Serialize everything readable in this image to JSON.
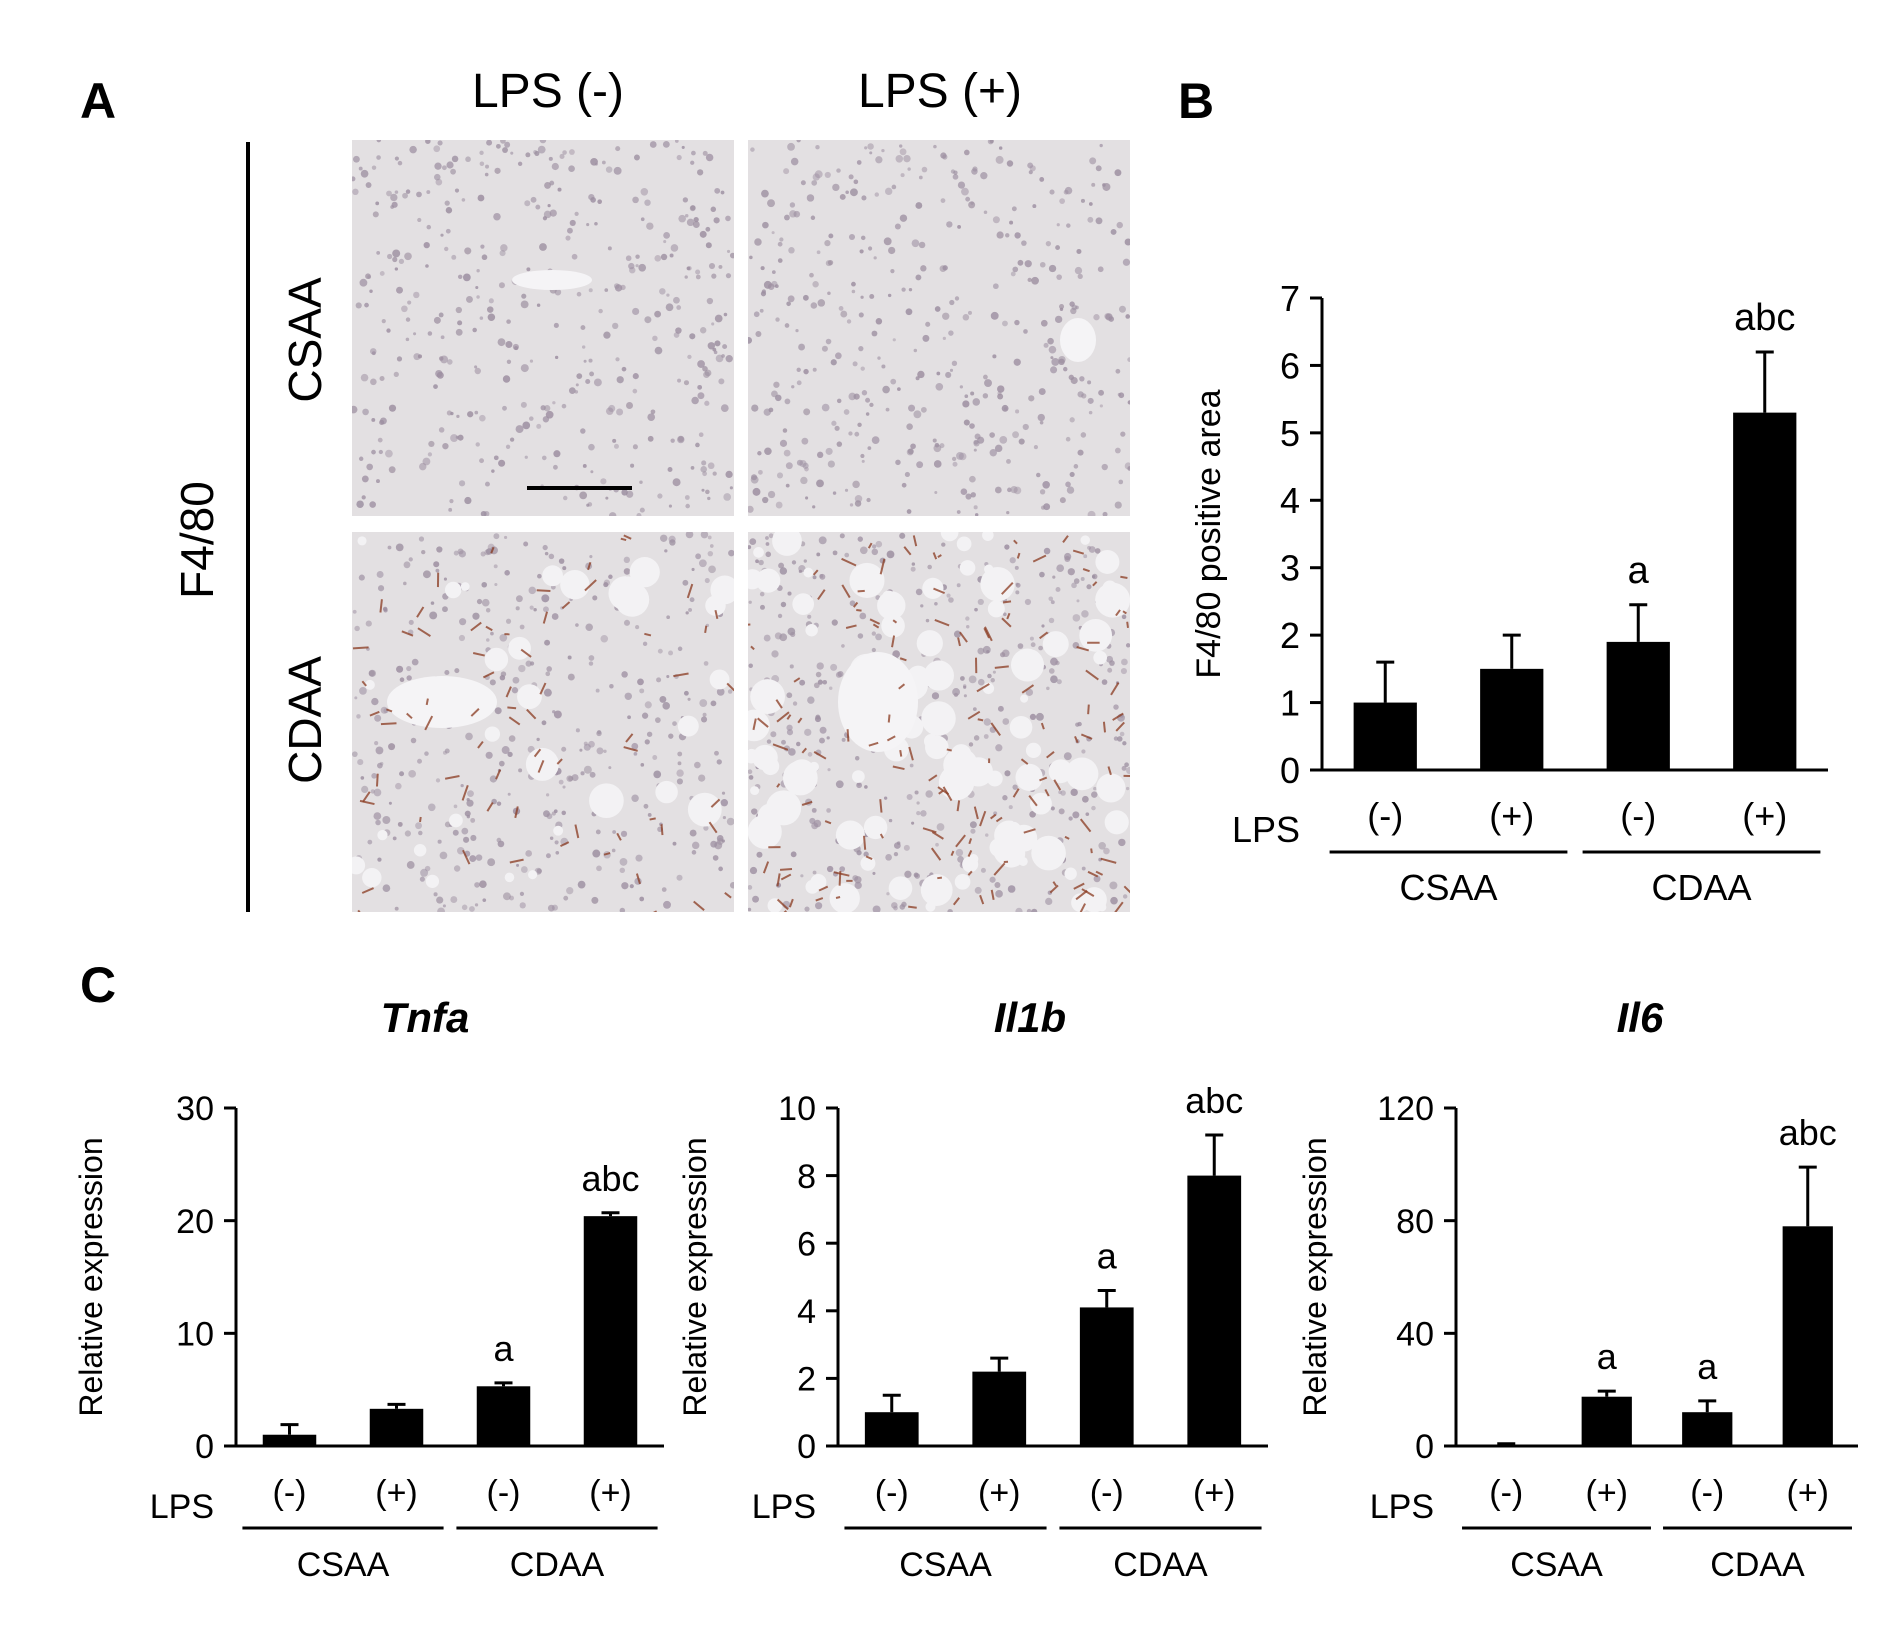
{
  "panel_a": {
    "letter": "A",
    "columns": [
      "LPS (-)",
      "LPS (+)"
    ],
    "rows": [
      "CSAA",
      "CDAA"
    ],
    "stain_label": "F4/80"
  },
  "colors": {
    "bars": "#000000",
    "tissue_bg": "#e3e0e2",
    "nuclei": "#9c8ea0",
    "stain": "#8a3a20"
  },
  "chart_data": [
    {
      "id": "B",
      "letter": "B",
      "type": "bar",
      "title": "",
      "xlabel": "",
      "ylabel": "F4/80 positive area",
      "ylim": [
        0,
        7
      ],
      "yticks": [
        0,
        1,
        2,
        3,
        4,
        5,
        6,
        7
      ],
      "categories": [
        "(-)",
        "(+)",
        "(-)",
        "(+)"
      ],
      "groups": [
        "CSAA",
        "CDAA"
      ],
      "factor_label": "LPS",
      "values": [
        1.0,
        1.5,
        1.9,
        5.3
      ],
      "errors": [
        0.6,
        0.5,
        0.55,
        0.9
      ],
      "annotations": [
        "",
        "",
        "a",
        "abc"
      ]
    },
    {
      "id": "C1",
      "letter": "C",
      "type": "bar",
      "title": "Tnfa",
      "xlabel": "",
      "ylabel": "Relative expression",
      "ylim": [
        0,
        30
      ],
      "yticks": [
        0,
        10,
        20,
        30
      ],
      "categories": [
        "(-)",
        "(+)",
        "(-)",
        "(+)"
      ],
      "groups": [
        "CSAA",
        "CDAA"
      ],
      "factor_label": "LPS",
      "values": [
        1.0,
        3.3,
        5.3,
        20.4
      ],
      "errors": [
        0.9,
        0.4,
        0.3,
        0.3
      ],
      "annotations": [
        "",
        "",
        "a",
        "abc"
      ]
    },
    {
      "id": "C2",
      "letter": "",
      "type": "bar",
      "title": "Il1b",
      "xlabel": "",
      "ylabel": "Relative expression",
      "ylim": [
        0,
        10
      ],
      "yticks": [
        0,
        2,
        4,
        6,
        8,
        10
      ],
      "categories": [
        "(-)",
        "(+)",
        "(-)",
        "(+)"
      ],
      "groups": [
        "CSAA",
        "CDAA"
      ],
      "factor_label": "LPS",
      "values": [
        1.0,
        2.2,
        4.1,
        8.0
      ],
      "errors": [
        0.5,
        0.4,
        0.5,
        1.2
      ],
      "annotations": [
        "",
        "",
        "a",
        "abc"
      ]
    },
    {
      "id": "C3",
      "letter": "",
      "type": "bar",
      "title": "Il6",
      "xlabel": "",
      "ylabel": "Relative expression",
      "ylim": [
        0,
        120
      ],
      "yticks": [
        0,
        40,
        80,
        120
      ],
      "categories": [
        "(-)",
        "(+)",
        "(-)",
        "(+)"
      ],
      "groups": [
        "CSAA",
        "CDAA"
      ],
      "factor_label": "LPS",
      "values": [
        0.5,
        17.5,
        12.0,
        78.0
      ],
      "errors": [
        0.3,
        2.0,
        4.0,
        21.0
      ],
      "annotations": [
        "",
        "a",
        "a",
        "abc"
      ]
    }
  ]
}
